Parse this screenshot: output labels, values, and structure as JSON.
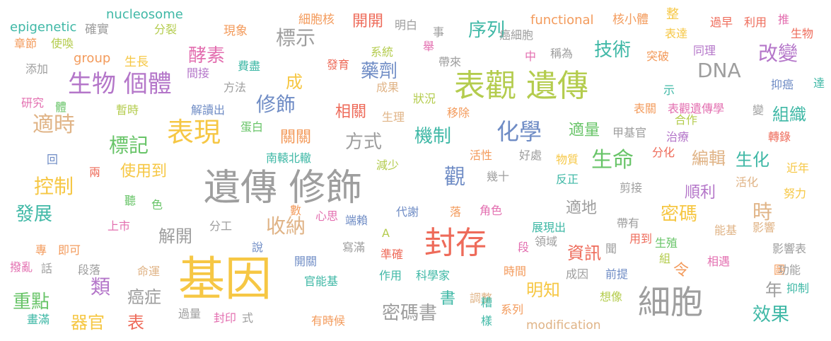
{
  "colors": {
    "gray": "#9e9e9e",
    "gold": "#f6c744",
    "orange": "#f39b5c",
    "red": "#ee6b5a",
    "pink": "#e36fb0",
    "purple": "#b476c9",
    "blue": "#6f8cc5",
    "teal": "#3fb8a6",
    "green": "#68c468",
    "lime": "#b4cc4e",
    "tan": "#e0b487"
  },
  "words": [
    {
      "text": "基因",
      "color": "gold"
    },
    {
      "text": "遺傳 修飾",
      "color": "gray"
    },
    {
      "text": "表觀 遺傳",
      "color": "lime"
    },
    {
      "text": "細胞",
      "color": "gray"
    },
    {
      "text": "封存",
      "color": "red"
    },
    {
      "text": "表現",
      "color": "gold"
    },
    {
      "text": "生物 個體",
      "color": "purple"
    },
    {
      "text": "化學",
      "color": "blue"
    },
    {
      "text": "生命",
      "color": "green"
    },
    {
      "text": "序列",
      "color": "teal"
    },
    {
      "text": "技術",
      "color": "teal"
    },
    {
      "text": "改變",
      "color": "purple"
    },
    {
      "text": "DNA",
      "color": "gray"
    },
    {
      "text": "標示",
      "color": "gray"
    },
    {
      "text": "酵素",
      "color": "pink"
    },
    {
      "text": "藥劑",
      "color": "blue"
    },
    {
      "text": "修飾",
      "color": "blue"
    },
    {
      "text": "機制",
      "color": "teal"
    },
    {
      "text": "方式",
      "color": "gray"
    },
    {
      "text": "適時",
      "color": "tan"
    },
    {
      "text": "標記",
      "color": "green"
    },
    {
      "text": "控制",
      "color": "gold"
    },
    {
      "text": "發展",
      "color": "teal"
    },
    {
      "text": "收納",
      "color": "tan"
    },
    {
      "text": "密碼",
      "color": "gold"
    },
    {
      "text": "編輯",
      "color": "tan"
    },
    {
      "text": "生化",
      "color": "teal"
    },
    {
      "text": "組織",
      "color": "teal"
    },
    {
      "text": "效果",
      "color": "teal"
    },
    {
      "text": "類",
      "color": "purple"
    },
    {
      "text": "重點",
      "color": "green"
    },
    {
      "text": "器官",
      "color": "gold"
    },
    {
      "text": "密碼書",
      "color": "gray"
    },
    {
      "text": "明知",
      "color": "gold"
    },
    {
      "text": "資訊",
      "color": "red"
    },
    {
      "text": "觀",
      "color": "blue"
    },
    {
      "text": "時",
      "color": "tan"
    },
    {
      "text": "順利",
      "color": "purple"
    },
    {
      "text": "年",
      "color": "gray"
    },
    {
      "text": "書",
      "color": "teal"
    },
    {
      "text": "表",
      "color": "red"
    },
    {
      "text": "癌症",
      "color": "gray"
    },
    {
      "text": "解開",
      "color": "gray"
    },
    {
      "text": "相關",
      "color": "red"
    },
    {
      "text": "關關",
      "color": "orange"
    },
    {
      "text": "開開",
      "color": "red"
    },
    {
      "text": "適地",
      "color": "gray"
    },
    {
      "text": "適量",
      "color": "green"
    },
    {
      "text": "成",
      "color": "gold"
    },
    {
      "text": "使用到",
      "color": "gold"
    },
    {
      "text": "令",
      "color": "orange"
    },
    {
      "text": "epigenetic",
      "color": "teal"
    },
    {
      "text": "nucleosome",
      "color": "teal"
    },
    {
      "text": "functional",
      "color": "orange"
    },
    {
      "text": "modification",
      "color": "tan"
    },
    {
      "text": "group",
      "color": "orange"
    },
    {
      "text": "確實",
      "color": "gray"
    },
    {
      "text": "分裂",
      "color": "lime"
    },
    {
      "text": "現象",
      "color": "orange"
    },
    {
      "text": "細胞核",
      "color": "orange"
    },
    {
      "text": "明白",
      "color": "gray"
    },
    {
      "text": "事",
      "color": "gray"
    },
    {
      "text": "癌細胞",
      "color": "gray"
    },
    {
      "text": "核小體",
      "color": "orange"
    },
    {
      "text": "整",
      "color": "gold"
    },
    {
      "text": "過早",
      "color": "red"
    },
    {
      "text": "利用",
      "color": "red"
    },
    {
      "text": "推",
      "color": "pink"
    },
    {
      "text": "生物",
      "color": "red"
    },
    {
      "text": "章節",
      "color": "orange"
    },
    {
      "text": "使喚",
      "color": "lime"
    },
    {
      "text": "生長",
      "color": "gold"
    },
    {
      "text": "系統",
      "color": "lime"
    },
    {
      "text": "舉",
      "color": "pink"
    },
    {
      "text": "中",
      "color": "pink"
    },
    {
      "text": "帶來",
      "color": "gray"
    },
    {
      "text": "稱為",
      "color": "gray"
    },
    {
      "text": "突破",
      "color": "orange"
    },
    {
      "text": "表達",
      "color": "gold"
    },
    {
      "text": "同理",
      "color": "purple"
    },
    {
      "text": "添加",
      "color": "gray"
    },
    {
      "text": "間接",
      "color": "purple"
    },
    {
      "text": "費盡",
      "color": "teal"
    },
    {
      "text": "發育",
      "color": "red"
    },
    {
      "text": "方法",
      "color": "gray"
    },
    {
      "text": "成果",
      "color": "tan"
    },
    {
      "text": "示",
      "color": "teal"
    },
    {
      "text": "抑癌",
      "color": "blue"
    },
    {
      "text": "達",
      "color": "teal"
    },
    {
      "text": "研究",
      "color": "pink"
    },
    {
      "text": "體",
      "color": "green"
    },
    {
      "text": "暫時",
      "color": "lime"
    },
    {
      "text": "解讀出",
      "color": "blue"
    },
    {
      "text": "狀況",
      "color": "lime"
    },
    {
      "text": "生理",
      "color": "tan"
    },
    {
      "text": "移除",
      "color": "orange"
    },
    {
      "text": "表關",
      "color": "orange"
    },
    {
      "text": "表觀遺傳學",
      "color": "pink"
    },
    {
      "text": "變",
      "color": "gray"
    },
    {
      "text": "合作",
      "color": "lime"
    },
    {
      "text": "甲基官",
      "color": "gray"
    },
    {
      "text": "蛋白",
      "color": "green"
    },
    {
      "text": "治療",
      "color": "purple"
    },
    {
      "text": "轉錄",
      "color": "red"
    },
    {
      "text": "回",
      "color": "blue"
    },
    {
      "text": "南轅北轍",
      "color": "teal"
    },
    {
      "text": "活性",
      "color": "orange"
    },
    {
      "text": "好處",
      "color": "gray"
    },
    {
      "text": "物質",
      "color": "gold"
    },
    {
      "text": "分化",
      "color": "red"
    },
    {
      "text": "兩",
      "color": "red"
    },
    {
      "text": "減少",
      "color": "lime"
    },
    {
      "text": "幾十",
      "color": "gray"
    },
    {
      "text": "反正",
      "color": "teal"
    },
    {
      "text": "近年",
      "color": "gold"
    },
    {
      "text": "活化",
      "color": "tan"
    },
    {
      "text": "剪接",
      "color": "gray"
    },
    {
      "text": "聽",
      "color": "green"
    },
    {
      "text": "色",
      "color": "green"
    },
    {
      "text": "數",
      "color": "orange"
    },
    {
      "text": "努力",
      "color": "gold"
    },
    {
      "text": "心思",
      "color": "pink"
    },
    {
      "text": "代謝",
      "color": "blue"
    },
    {
      "text": "落",
      "color": "orange"
    },
    {
      "text": "角色",
      "color": "pink"
    },
    {
      "text": "上市",
      "color": "pink"
    },
    {
      "text": "分工",
      "color": "gray"
    },
    {
      "text": "端賴",
      "color": "blue"
    },
    {
      "text": "帶有",
      "color": "gray"
    },
    {
      "text": "展現出",
      "color": "teal"
    },
    {
      "text": "能基",
      "color": "tan"
    },
    {
      "text": "影響",
      "color": "tan"
    },
    {
      "text": "A",
      "color": "lime"
    },
    {
      "text": "段",
      "color": "pink"
    },
    {
      "text": "領域",
      "color": "gray"
    },
    {
      "text": "用到",
      "color": "red"
    },
    {
      "text": "專",
      "color": "orange"
    },
    {
      "text": "即可",
      "color": "orange"
    },
    {
      "text": "說",
      "color": "blue"
    },
    {
      "text": "寫滿",
      "color": "gray"
    },
    {
      "text": "聞",
      "color": "gray"
    },
    {
      "text": "生殖",
      "color": "green"
    },
    {
      "text": "影響表",
      "color": "gray"
    },
    {
      "text": "撥亂",
      "color": "pink"
    },
    {
      "text": "話",
      "color": "gray"
    },
    {
      "text": "段落",
      "color": "gray"
    },
    {
      "text": "開關",
      "color": "blue"
    },
    {
      "text": "準確",
      "color": "red"
    },
    {
      "text": "組",
      "color": "lime"
    },
    {
      "text": "相遇",
      "color": "pink"
    },
    {
      "text": "命運",
      "color": "tan"
    },
    {
      "text": "成因",
      "color": "gray"
    },
    {
      "text": "前提",
      "color": "blue"
    },
    {
      "text": "圖",
      "color": "orange"
    },
    {
      "text": "功能",
      "color": "gray"
    },
    {
      "text": "官能基",
      "color": "teal"
    },
    {
      "text": "作用",
      "color": "teal"
    },
    {
      "text": "科學家",
      "color": "teal"
    },
    {
      "text": "時間",
      "color": "orange"
    },
    {
      "text": "想像",
      "color": "lime"
    },
    {
      "text": "抑制",
      "color": "teal"
    },
    {
      "text": "調整",
      "color": "tan"
    },
    {
      "text": "糟",
      "color": "teal"
    },
    {
      "text": "系列",
      "color": "orange"
    },
    {
      "text": "樣",
      "color": "teal"
    },
    {
      "text": "過量",
      "color": "gray"
    },
    {
      "text": "封印",
      "color": "pink"
    },
    {
      "text": "式",
      "color": "gray"
    },
    {
      "text": "有時候",
      "color": "orange"
    },
    {
      "text": "畫滿",
      "color": "teal"
    }
  ]
}
